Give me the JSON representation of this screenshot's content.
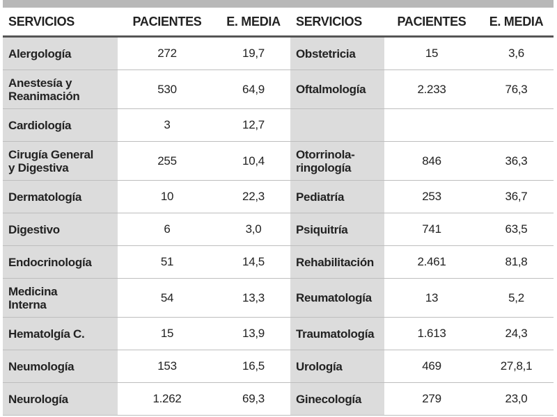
{
  "headers": {
    "servicios": "SERVICIOS",
    "pacientes": "PACIENTES",
    "e_media": "E. MEDIA"
  },
  "rows": [
    {
      "left": {
        "servicio": "Alergología",
        "pacientes": "272",
        "e_media": "19,7"
      },
      "right": {
        "servicio": "Obstetricia",
        "pacientes": "15",
        "e_media": "3,6"
      }
    },
    {
      "left": {
        "servicio": "Anestesía y\nReanimación",
        "pacientes": "530",
        "e_media": "64,9"
      },
      "right": {
        "servicio": "Oftalmología",
        "pacientes": "2.233",
        "e_media": "76,3"
      }
    },
    {
      "left": {
        "servicio": "Cardiología",
        "pacientes": "3",
        "e_media": "12,7"
      },
      "right": {
        "servicio": "",
        "pacientes": "",
        "e_media": ""
      }
    },
    {
      "left": {
        "servicio": "Cirugía General\ny Digestiva",
        "pacientes": "255",
        "e_media": "10,4"
      },
      "right": {
        "servicio": "Otorrinola-\nringología",
        "pacientes": "846",
        "e_media": "36,3"
      }
    },
    {
      "left": {
        "servicio": "Dermatología",
        "pacientes": "10",
        "e_media": "22,3"
      },
      "right": {
        "servicio": "Pediatría",
        "pacientes": "253",
        "e_media": "36,7"
      }
    },
    {
      "left": {
        "servicio": "Digestivo",
        "pacientes": "6",
        "e_media": "3,0"
      },
      "right": {
        "servicio": "Psiquitría",
        "pacientes": "741",
        "e_media": "63,5"
      }
    },
    {
      "left": {
        "servicio": "Endocrinología",
        "pacientes": "51",
        "e_media": "14,5"
      },
      "right": {
        "servicio": "Rehabilitación",
        "pacientes": "2.461",
        "e_media": "81,8"
      }
    },
    {
      "left": {
        "servicio": "Medicina\nInterna",
        "pacientes": "54",
        "e_media": "13,3"
      },
      "right": {
        "servicio": "Reumatología",
        "pacientes": "13",
        "e_media": "5,2"
      }
    },
    {
      "left": {
        "servicio": "Hematolgía C.",
        "pacientes": "15",
        "e_media": "13,9"
      },
      "right": {
        "servicio": "Traumatología",
        "pacientes": "1.613",
        "e_media": "24,3"
      }
    },
    {
      "left": {
        "servicio": "Neumología",
        "pacientes": "153",
        "e_media": "16,5"
      },
      "right": {
        "servicio": "Urología",
        "pacientes": "469",
        "e_media": "27,8,1"
      }
    },
    {
      "left": {
        "servicio": "Neurología",
        "pacientes": "1.262",
        "e_media": "69,3"
      },
      "right": {
        "servicio": "Ginecología",
        "pacientes": "279",
        "e_media": "23,0"
      }
    }
  ]
}
